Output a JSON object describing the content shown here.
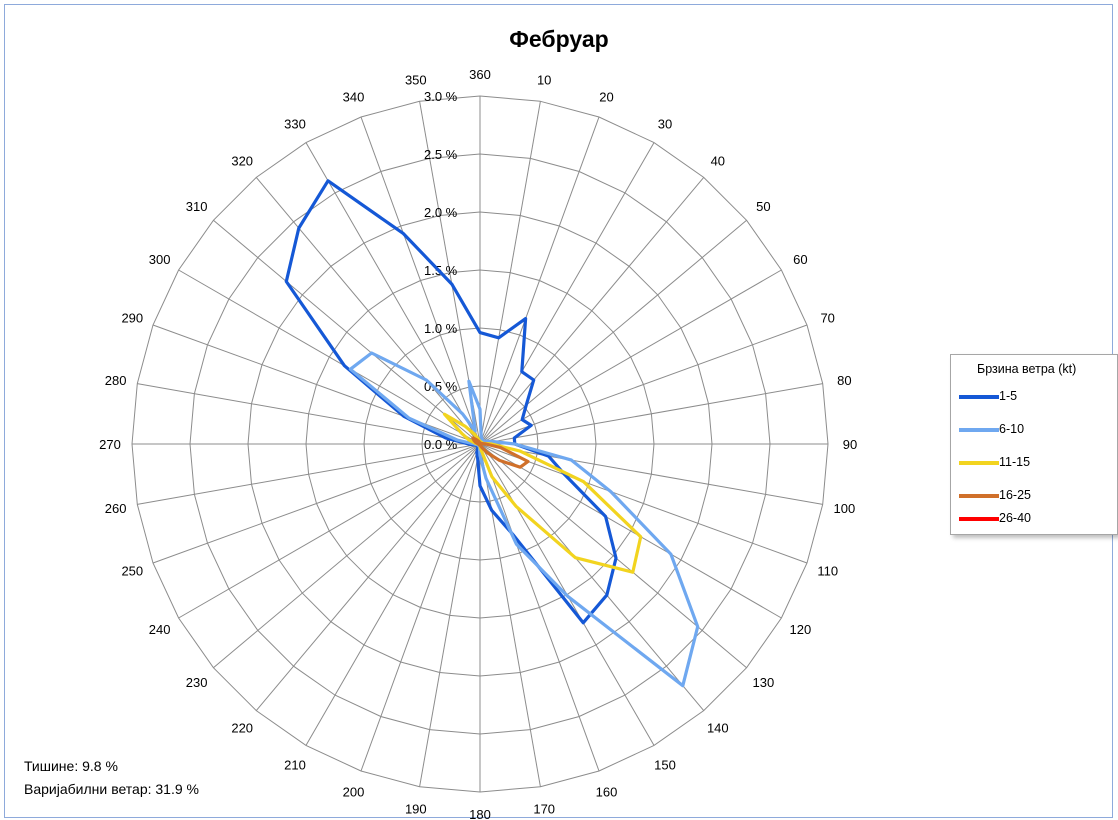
{
  "chart_data": {
    "type": "radar",
    "title": "Фебруар",
    "directions": [
      10,
      20,
      30,
      40,
      50,
      60,
      70,
      80,
      90,
      100,
      110,
      120,
      130,
      140,
      150,
      160,
      170,
      180,
      190,
      200,
      210,
      220,
      230,
      240,
      250,
      260,
      270,
      280,
      290,
      300,
      310,
      320,
      330,
      340,
      350,
      360
    ],
    "r_ticks": [
      "0.0 %",
      "0.5 %",
      "1.0 %",
      "1.5 %",
      "2.0 %",
      "2.5 %",
      "3.0 %"
    ],
    "r_max": 3.0,
    "legend_title": "Брзина ветра (kt)",
    "series": [
      {
        "name": "1-5",
        "color": "#1558d6",
        "values": [
          0.93,
          1.15,
          0.72,
          0.72,
          0.52,
          0.42,
          0.47,
          0.3,
          0.3,
          0.6,
          0.78,
          1.25,
          1.53,
          1.7,
          1.78,
          0.83,
          0.58,
          0.36,
          0.12,
          0.08,
          0.04,
          0.03,
          0.03,
          0.03,
          0.03,
          0.05,
          0.1,
          0.3,
          0.7,
          1.35,
          2.18,
          2.43,
          2.62,
          1.93,
          1.4,
          0.96
        ]
      },
      {
        "name": "6-10",
        "color": "#6fa8f0",
        "values": [
          0.06,
          0.05,
          0.04,
          0.03,
          0.03,
          0.05,
          0.07,
          0.12,
          0.3,
          0.8,
          1.2,
          1.9,
          2.45,
          2.72,
          1.52,
          0.92,
          0.3,
          0.1,
          0.03,
          0.02,
          0.02,
          0.02,
          0.02,
          0.02,
          0.02,
          0.03,
          0.05,
          0.2,
          0.65,
          1.29,
          1.22,
          0.72,
          0.3,
          0.12,
          0.55,
          0.3
        ]
      },
      {
        "name": "11-15",
        "color": "#f2d41f",
        "values": [
          0.02,
          0.02,
          0.02,
          0.02,
          0.02,
          0.02,
          0.02,
          0.03,
          0.1,
          0.35,
          0.95,
          1.6,
          1.72,
          1.28,
          0.62,
          0.3,
          0.05,
          0.02,
          0.01,
          0.01,
          0.01,
          0.01,
          0.01,
          0.01,
          0.01,
          0.01,
          0.02,
          0.04,
          0.1,
          0.18,
          0.4,
          0.2,
          0.1,
          0.05,
          0.03,
          0.02
        ]
      },
      {
        "name": "16-25",
        "color": "#d0702a",
        "values": [
          0.01,
          0.01,
          0.01,
          0.01,
          0.01,
          0.01,
          0.01,
          0.02,
          0.05,
          0.18,
          0.44,
          0.4,
          0.22,
          0.1,
          0.04,
          0.02,
          0.01,
          0.01,
          0.01,
          0.01,
          0.01,
          0.01,
          0.01,
          0.01,
          0.01,
          0.01,
          0.01,
          0.02,
          0.04,
          0.06,
          0.08,
          0.05,
          0.03,
          0.02,
          0.01,
          0.01
        ]
      },
      {
        "name": "26-40",
        "color": "#ff0000",
        "values": [
          0.0,
          0.0,
          0.0,
          0.0,
          0.0,
          0.0,
          0.0,
          0.0,
          0.0,
          0.0,
          0.0,
          0.0,
          0.0,
          0.0,
          0.0,
          0.0,
          0.0,
          0.0,
          0.0,
          0.0,
          0.0,
          0.0,
          0.0,
          0.0,
          0.0,
          0.0,
          0.0,
          0.0,
          0.0,
          0.0,
          0.0,
          0.0,
          0.0,
          0.0,
          0.0,
          0.0
        ]
      }
    ]
  },
  "notes": {
    "calm": "Тишине:  9.8 %",
    "variable_label": "Варијабилни",
    "variable_value": "ветар: 31.9 %"
  }
}
